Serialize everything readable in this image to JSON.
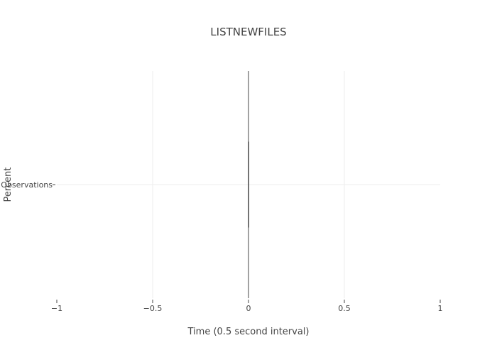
{
  "chart_data": {
    "type": "box",
    "title": "LISTNEWFILES",
    "xlabel": "Time (0.5 second interval)",
    "ylabel": "Percent",
    "categories": [
      "Observations"
    ],
    "x_ticks": [
      -1,
      -0.5,
      0,
      0.5,
      1
    ],
    "x_tick_labels": [
      "−1",
      "−0.5",
      "0",
      "0.5",
      "1"
    ],
    "xlim": [
      -1,
      1
    ],
    "series": [
      {
        "values": [
          0,
          0,
          0,
          0,
          0
        ]
      }
    ],
    "grid": true,
    "legend": "none"
  },
  "colors": {
    "grid": "#eeeeee",
    "zeroline": "#444444",
    "text": "#444444",
    "tick": "#444444"
  }
}
